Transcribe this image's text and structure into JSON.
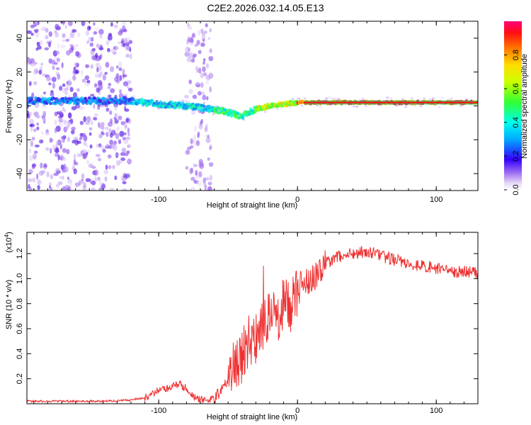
{
  "chart_data": [
    {
      "type": "heatmap",
      "title": "C2E2.2026.032.14.05.E13",
      "xlabel": "Height of straight line (km)",
      "ylabel": "Frequency (Hz)",
      "xlim": [
        -195,
        130
      ],
      "ylim": [
        -50,
        50
      ],
      "x_ticks": [
        {
          "value": -100,
          "label": "-100"
        },
        {
          "value": 0,
          "label": "0"
        },
        {
          "value": 100,
          "label": "100"
        }
      ],
      "y_ticks": [
        {
          "value": -40,
          "label": "-40"
        },
        {
          "value": -20,
          "label": "-20"
        },
        {
          "value": 0,
          "label": "0"
        },
        {
          "value": 20,
          "label": "20"
        },
        {
          "value": 40,
          "label": "40"
        }
      ],
      "colorbar": {
        "label": "Normalized spectral amplitude",
        "range": [
          0,
          1
        ],
        "ticks": [
          {
            "value": 0.0,
            "label": "0.0"
          },
          {
            "value": 0.2,
            "label": "0.2"
          },
          {
            "value": 0.4,
            "label": "0.4"
          },
          {
            "value": 0.6,
            "label": "0.6"
          },
          {
            "value": 0.8,
            "label": "0.8"
          }
        ]
      },
      "tone_path": [
        {
          "x": -195,
          "y": 3
        },
        {
          "x": -150,
          "y": 3
        },
        {
          "x": -120,
          "y": 3
        },
        {
          "x": -110,
          "y": 2
        },
        {
          "x": -100,
          "y": 1
        },
        {
          "x": -80,
          "y": 0
        },
        {
          "x": -70,
          "y": -1
        },
        {
          "x": -60,
          "y": -2
        },
        {
          "x": -50,
          "y": -4
        },
        {
          "x": -40,
          "y": -6
        },
        {
          "x": -30,
          "y": -2
        },
        {
          "x": -20,
          "y": 0
        },
        {
          "x": -10,
          "y": 1
        },
        {
          "x": 0,
          "y": 2
        },
        {
          "x": 10,
          "y": 2
        },
        {
          "x": 50,
          "y": 2
        },
        {
          "x": 130,
          "y": 2
        }
      ]
    },
    {
      "type": "line",
      "title": "",
      "xlabel": "Height of straight line (km)",
      "ylabel": "SNR (10 * v/v)",
      "multiplier_label": "(x10",
      "multiplier_exp": "4",
      "multiplier_close": ")",
      "xlim": [
        -195,
        130
      ],
      "ylim": [
        0,
        1.37
      ],
      "line_color": "#ee3030",
      "x_ticks": [
        {
          "value": -100,
          "label": "-100"
        },
        {
          "value": 0,
          "label": "0"
        },
        {
          "value": 100,
          "label": "100"
        }
      ],
      "y_ticks": [
        {
          "value": 0.2,
          "label": "0.2"
        },
        {
          "value": 0.4,
          "label": "0.4"
        },
        {
          "value": 0.6,
          "label": "0.6"
        },
        {
          "value": 0.8,
          "label": "0.8"
        },
        {
          "value": 1.0,
          "label": "1.0"
        },
        {
          "value": 1.2,
          "label": "1.2"
        }
      ],
      "series": [
        {
          "name": "SNR",
          "x": [
            -195,
            -160,
            -140,
            -120,
            -110,
            -100,
            -90,
            -85,
            -80,
            -75,
            -70,
            -65,
            -60,
            -55,
            -50,
            -45,
            -40,
            -35,
            -30,
            -25,
            -20,
            -15,
            -10,
            -5,
            0,
            5,
            10,
            15,
            20,
            25,
            30,
            40,
            50,
            60,
            70,
            80,
            90,
            100,
            110,
            120,
            130
          ],
          "values": [
            0.02,
            0.02,
            0.02,
            0.03,
            0.05,
            0.1,
            0.14,
            0.16,
            0.12,
            0.06,
            0.03,
            0.03,
            0.04,
            0.1,
            0.2,
            0.3,
            0.38,
            0.52,
            0.5,
            0.62,
            0.72,
            0.68,
            0.8,
            0.78,
            0.9,
            0.95,
            1.0,
            1.05,
            1.12,
            1.15,
            1.18,
            1.2,
            1.22,
            1.18,
            1.15,
            1.12,
            1.1,
            1.08,
            1.05,
            1.06,
            1.04
          ]
        }
      ]
    }
  ]
}
